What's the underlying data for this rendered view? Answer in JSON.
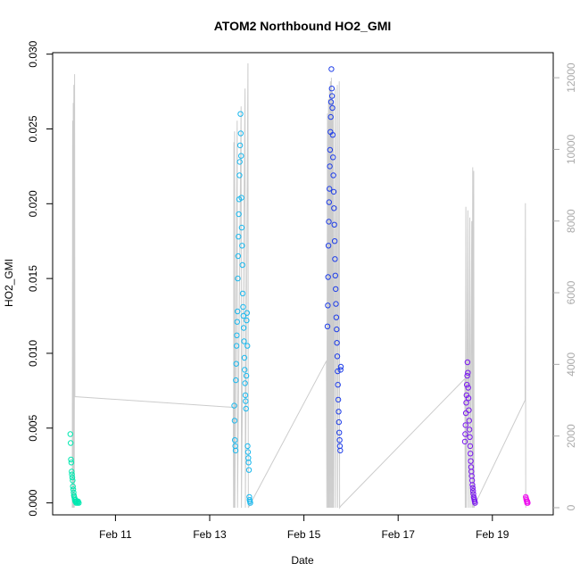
{
  "chart_data": {
    "type": "scatter",
    "title": "ATOM2 Northbound HO2_GMI",
    "xlabel": "Date",
    "ylabel": "HO2_GMI",
    "xlim": [
      "2017-02-09T16:00",
      "2017-02-20T07:00"
    ],
    "ylim": [
      -0.0008,
      0.0301
    ],
    "y2lim": [
      -200,
      12700
    ],
    "x_ticks": [
      {
        "date": "2017-02-11",
        "label": "Feb 11"
      },
      {
        "date": "2017-02-13",
        "label": "Feb 13"
      },
      {
        "date": "2017-02-15",
        "label": "Feb 15"
      },
      {
        "date": "2017-02-17",
        "label": "Feb 17"
      },
      {
        "date": "2017-02-19",
        "label": "Feb 19"
      }
    ],
    "y_ticks": [
      {
        "value": 0.0,
        "label": "0.000"
      },
      {
        "value": 0.005,
        "label": "0.005"
      },
      {
        "value": 0.01,
        "label": "0.010"
      },
      {
        "value": 0.015,
        "label": "0.015"
      },
      {
        "value": 0.02,
        "label": "0.020"
      },
      {
        "value": 0.025,
        "label": "0.025"
      },
      {
        "value": 0.03,
        "label": "0.030"
      }
    ],
    "y2_ticks": [
      {
        "value": 0,
        "label": "0"
      },
      {
        "value": 2000,
        "label": "2000"
      },
      {
        "value": 4000,
        "label": "4000"
      },
      {
        "value": 6000,
        "label": "6000"
      },
      {
        "value": 8000,
        "label": "8000"
      },
      {
        "value": 10000,
        "label": "10000"
      },
      {
        "value": 12000,
        "label": "12000"
      }
    ],
    "grid": false,
    "legend": "none",
    "colors": {
      "flight1": "#00e8b0",
      "flight2": "#1ab8ee",
      "flight3": "#1f3ee8",
      "flight4": "#7a18f0",
      "flight5": "#ee10ee",
      "altitude_line": "#cccccc",
      "axis": "#000000",
      "right_axis": "#aaaaaa"
    },
    "series": [
      {
        "color": "#00e8b0",
        "points": [
          [
            "2017-02-10T01:00",
            0.0046
          ],
          [
            "2017-02-10T01:10",
            0.004
          ],
          [
            "2017-02-10T01:20",
            0.0029
          ],
          [
            "2017-02-10T01:30",
            0.0027
          ],
          [
            "2017-02-10T01:40",
            0.0021
          ],
          [
            "2017-02-10T01:50",
            0.0019
          ],
          [
            "2017-02-10T02:00",
            0.0017
          ],
          [
            "2017-02-10T02:10",
            0.0015
          ],
          [
            "2017-02-10T02:20",
            0.0011
          ],
          [
            "2017-02-10T02:30",
            0.0009
          ],
          [
            "2017-02-10T02:40",
            0.0007
          ],
          [
            "2017-02-10T02:50",
            0.0005
          ],
          [
            "2017-02-10T03:00",
            0.0004
          ],
          [
            "2017-02-10T03:10",
            0.0003
          ],
          [
            "2017-02-10T03:20",
            0.0002
          ],
          [
            "2017-02-10T03:30",
            0.0001
          ],
          [
            "2017-02-10T03:40",
            0.0002
          ],
          [
            "2017-02-10T03:50",
            0.0001
          ],
          [
            "2017-02-10T04:00",
            0.0
          ],
          [
            "2017-02-10T04:20",
            0.0001
          ],
          [
            "2017-02-10T04:40",
            0.0
          ],
          [
            "2017-02-10T05:00",
            0.0001
          ],
          [
            "2017-02-10T05:20",
            0.0
          ]
        ]
      },
      {
        "color": "#1ab8ee",
        "points": [
          [
            "2017-02-13T12:30",
            0.0065
          ],
          [
            "2017-02-13T12:40",
            0.0055
          ],
          [
            "2017-02-13T12:50",
            0.0042
          ],
          [
            "2017-02-13T13:00",
            0.0038
          ],
          [
            "2017-02-13T13:10",
            0.0035
          ],
          [
            "2017-02-13T13:20",
            0.0082
          ],
          [
            "2017-02-13T13:30",
            0.0093
          ],
          [
            "2017-02-13T13:40",
            0.0105
          ],
          [
            "2017-02-13T13:50",
            0.0112
          ],
          [
            "2017-02-13T14:00",
            0.0121
          ],
          [
            "2017-02-13T14:10",
            0.0128
          ],
          [
            "2017-02-13T14:20",
            0.015
          ],
          [
            "2017-02-13T14:30",
            0.0165
          ],
          [
            "2017-02-13T14:40",
            0.0178
          ],
          [
            "2017-02-13T14:50",
            0.0193
          ],
          [
            "2017-02-13T15:00",
            0.0203
          ],
          [
            "2017-02-13T15:10",
            0.0219
          ],
          [
            "2017-02-13T15:20",
            0.0228
          ],
          [
            "2017-02-13T15:30",
            0.0239
          ],
          [
            "2017-02-13T15:40",
            0.026
          ],
          [
            "2017-02-13T15:50",
            0.0247
          ],
          [
            "2017-02-13T16:00",
            0.0232
          ],
          [
            "2017-02-13T16:10",
            0.0204
          ],
          [
            "2017-02-13T16:20",
            0.0184
          ],
          [
            "2017-02-13T16:30",
            0.0172
          ],
          [
            "2017-02-13T16:40",
            0.0159
          ],
          [
            "2017-02-13T16:50",
            0.014
          ],
          [
            "2017-02-13T17:00",
            0.0131
          ],
          [
            "2017-02-13T17:10",
            0.0125
          ],
          [
            "2017-02-13T17:20",
            0.0117
          ],
          [
            "2017-02-13T17:30",
            0.0108
          ],
          [
            "2017-02-13T17:40",
            0.0097
          ],
          [
            "2017-02-13T17:50",
            0.0089
          ],
          [
            "2017-02-13T18:00",
            0.008
          ],
          [
            "2017-02-13T18:10",
            0.0072
          ],
          [
            "2017-02-13T18:20",
            0.0068
          ],
          [
            "2017-02-13T18:30",
            0.0063
          ],
          [
            "2017-02-13T18:40",
            0.0085
          ],
          [
            "2017-02-13T18:50",
            0.0122
          ],
          [
            "2017-02-13T19:00",
            0.0127
          ],
          [
            "2017-02-13T19:10",
            0.0105
          ],
          [
            "2017-02-13T19:20",
            0.0038
          ],
          [
            "2017-02-13T19:30",
            0.0034
          ],
          [
            "2017-02-13T19:40",
            0.003
          ],
          [
            "2017-02-13T19:50",
            0.0027
          ],
          [
            "2017-02-13T20:00",
            0.0022
          ],
          [
            "2017-02-13T20:10",
            0.0004
          ],
          [
            "2017-02-13T20:20",
            0.0002
          ],
          [
            "2017-02-13T20:30",
            0.0001
          ],
          [
            "2017-02-13T20:40",
            0.0
          ]
        ]
      },
      {
        "color": "#1f3ee8",
        "points": [
          [
            "2017-02-15T12:00",
            0.0118
          ],
          [
            "2017-02-15T12:10",
            0.0132
          ],
          [
            "2017-02-15T12:20",
            0.0151
          ],
          [
            "2017-02-15T12:30",
            0.0172
          ],
          [
            "2017-02-15T12:40",
            0.0188
          ],
          [
            "2017-02-15T12:50",
            0.0201
          ],
          [
            "2017-02-15T13:00",
            0.021
          ],
          [
            "2017-02-15T13:10",
            0.0225
          ],
          [
            "2017-02-15T13:20",
            0.0236
          ],
          [
            "2017-02-15T13:30",
            0.0248
          ],
          [
            "2017-02-15T13:40",
            0.0258
          ],
          [
            "2017-02-15T13:50",
            0.0268
          ],
          [
            "2017-02-15T14:00",
            0.029
          ],
          [
            "2017-02-15T14:10",
            0.0277
          ],
          [
            "2017-02-15T14:20",
            0.0272
          ],
          [
            "2017-02-15T14:30",
            0.0264
          ],
          [
            "2017-02-15T14:40",
            0.0246
          ],
          [
            "2017-02-15T14:50",
            0.0231
          ],
          [
            "2017-02-15T15:00",
            0.0219
          ],
          [
            "2017-02-15T15:10",
            0.0208
          ],
          [
            "2017-02-15T15:20",
            0.0197
          ],
          [
            "2017-02-15T15:30",
            0.0186
          ],
          [
            "2017-02-15T15:40",
            0.0175
          ],
          [
            "2017-02-15T15:50",
            0.0163
          ],
          [
            "2017-02-15T16:00",
            0.0152
          ],
          [
            "2017-02-15T16:10",
            0.0143
          ],
          [
            "2017-02-15T16:20",
            0.0133
          ],
          [
            "2017-02-15T16:30",
            0.0124
          ],
          [
            "2017-02-15T16:40",
            0.0116
          ],
          [
            "2017-02-15T16:50",
            0.0107
          ],
          [
            "2017-02-15T17:00",
            0.0098
          ],
          [
            "2017-02-15T17:10",
            0.0088
          ],
          [
            "2017-02-15T17:20",
            0.0079
          ],
          [
            "2017-02-15T17:30",
            0.0069
          ],
          [
            "2017-02-15T17:40",
            0.0061
          ],
          [
            "2017-02-15T17:50",
            0.0054
          ],
          [
            "2017-02-15T18:00",
            0.0047
          ],
          [
            "2017-02-15T18:10",
            0.0042
          ],
          [
            "2017-02-15T18:20",
            0.0038
          ],
          [
            "2017-02-15T18:30",
            0.0035
          ],
          [
            "2017-02-15T18:40",
            0.0089
          ],
          [
            "2017-02-15T18:50",
            0.0091
          ]
        ]
      },
      {
        "color": "#7a18f0",
        "points": [
          [
            "2017-02-18T10:00",
            0.0041
          ],
          [
            "2017-02-18T10:10",
            0.0046
          ],
          [
            "2017-02-18T10:20",
            0.0052
          ],
          [
            "2017-02-18T10:30",
            0.006
          ],
          [
            "2017-02-18T10:40",
            0.0067
          ],
          [
            "2017-02-18T10:50",
            0.0072
          ],
          [
            "2017-02-18T11:00",
            0.0079
          ],
          [
            "2017-02-18T11:10",
            0.0085
          ],
          [
            "2017-02-18T11:20",
            0.0094
          ],
          [
            "2017-02-18T11:30",
            0.0087
          ],
          [
            "2017-02-18T11:40",
            0.0077
          ],
          [
            "2017-02-18T11:50",
            0.007
          ],
          [
            "2017-02-18T12:00",
            0.0062
          ],
          [
            "2017-02-18T12:10",
            0.0055
          ],
          [
            "2017-02-18T12:20",
            0.0049
          ],
          [
            "2017-02-18T12:30",
            0.0044
          ],
          [
            "2017-02-18T12:40",
            0.0038
          ],
          [
            "2017-02-18T12:50",
            0.0033
          ],
          [
            "2017-02-18T13:00",
            0.0028
          ],
          [
            "2017-02-18T13:10",
            0.0024
          ],
          [
            "2017-02-18T13:20",
            0.0021
          ],
          [
            "2017-02-18T13:30",
            0.0018
          ],
          [
            "2017-02-18T13:40",
            0.0015
          ],
          [
            "2017-02-18T13:50",
            0.0012
          ],
          [
            "2017-02-18T14:00",
            0.001
          ],
          [
            "2017-02-18T14:10",
            0.0008
          ],
          [
            "2017-02-18T14:20",
            0.0006
          ],
          [
            "2017-02-18T14:30",
            0.0004
          ],
          [
            "2017-02-18T14:40",
            0.0003
          ],
          [
            "2017-02-18T14:50",
            0.0002
          ],
          [
            "2017-02-18T15:00",
            0.0001
          ],
          [
            "2017-02-18T15:10",
            0.0
          ]
        ]
      },
      {
        "color": "#ee10ee",
        "points": [
          [
            "2017-02-19T17:00",
            0.0004
          ],
          [
            "2017-02-19T17:10",
            0.0003
          ],
          [
            "2017-02-19T17:20",
            0.0002
          ],
          [
            "2017-02-19T17:30",
            0.0001
          ],
          [
            "2017-02-19T17:40",
            0.0
          ],
          [
            "2017-02-19T17:50",
            0.0001
          ],
          [
            "2017-02-19T18:00",
            0.0
          ]
        ]
      }
    ],
    "altitude_series": {
      "axis": "right",
      "points": [
        [
          "2017-02-10T02:00",
          0
        ],
        [
          "2017-02-10T02:10",
          10800
        ],
        [
          "2017-02-10T02:20",
          0
        ],
        [
          "2017-02-10T02:30",
          11300
        ],
        [
          "2017-02-10T02:40",
          0
        ],
        [
          "2017-02-10T02:50",
          11800
        ],
        [
          "2017-02-10T03:00",
          0
        ],
        [
          "2017-02-10T03:10",
          12100
        ],
        [
          "2017-02-10T03:20",
          3100
        ],
        [
          "2017-02-13T12:00",
          2800
        ],
        [
          "2017-02-13T12:10",
          0
        ],
        [
          "2017-02-13T12:20",
          10200
        ],
        [
          "2017-02-13T12:30",
          0
        ],
        [
          "2017-02-13T12:40",
          10500
        ],
        [
          "2017-02-13T12:50",
          0
        ],
        [
          "2017-02-13T14:00",
          10800
        ],
        [
          "2017-02-13T14:10",
          0
        ],
        [
          "2017-02-13T16:00",
          11200
        ],
        [
          "2017-02-13T16:10",
          0
        ],
        [
          "2017-02-13T18:00",
          11700
        ],
        [
          "2017-02-13T18:10",
          0
        ],
        [
          "2017-02-13T19:30",
          12400
        ],
        [
          "2017-02-13T19:40",
          0
        ],
        [
          "2017-02-15T11:30",
          4100
        ],
        [
          "2017-02-15T11:40",
          0
        ],
        [
          "2017-02-15T12:00",
          11000
        ],
        [
          "2017-02-15T12:10",
          0
        ],
        [
          "2017-02-15T12:30",
          11400
        ],
        [
          "2017-02-15T12:40",
          0
        ],
        [
          "2017-02-15T13:00",
          11700
        ],
        [
          "2017-02-15T13:10",
          0
        ],
        [
          "2017-02-15T13:30",
          11900
        ],
        [
          "2017-02-15T13:40",
          0
        ],
        [
          "2017-02-15T14:00",
          12000
        ],
        [
          "2017-02-15T14:10",
          0
        ],
        [
          "2017-02-15T14:30",
          11600
        ],
        [
          "2017-02-15T14:40",
          0
        ],
        [
          "2017-02-15T15:00",
          11300
        ],
        [
          "2017-02-15T15:10",
          0
        ],
        [
          "2017-02-15T16:00",
          11700
        ],
        [
          "2017-02-15T16:10",
          0
        ],
        [
          "2017-02-15T17:00",
          11800
        ],
        [
          "2017-02-15T17:10",
          0
        ],
        [
          "2017-02-15T18:00",
          11900
        ],
        [
          "2017-02-15T18:10",
          0
        ],
        [
          "2017-02-15T18:50",
          50
        ],
        [
          "2017-02-18T10:00",
          3600
        ],
        [
          "2017-02-18T10:10",
          0
        ],
        [
          "2017-02-18T10:30",
          8400
        ],
        [
          "2017-02-18T10:40",
          0
        ],
        [
          "2017-02-18T11:30",
          8300
        ],
        [
          "2017-02-18T11:40",
          0
        ],
        [
          "2017-02-18T12:30",
          8100
        ],
        [
          "2017-02-18T12:40",
          0
        ],
        [
          "2017-02-18T13:30",
          8000
        ],
        [
          "2017-02-18T13:40",
          0
        ],
        [
          "2017-02-18T14:00",
          9500
        ],
        [
          "2017-02-18T14:10",
          0
        ],
        [
          "2017-02-18T14:30",
          9400
        ],
        [
          "2017-02-18T14:40",
          0
        ],
        [
          "2017-02-18T15:10",
          100
        ],
        [
          "2017-02-19T16:40",
          3000
        ],
        [
          "2017-02-19T16:50",
          8500
        ],
        [
          "2017-02-19T17:00",
          0
        ]
      ]
    }
  }
}
